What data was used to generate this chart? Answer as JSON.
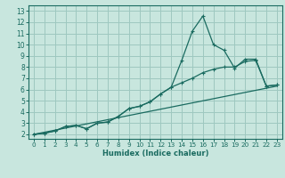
{
  "xlabel": "Humidex (Indice chaleur)",
  "bg_color": "#c8e6de",
  "grid_color": "#9ec8c0",
  "line_color": "#1a6b60",
  "spine_color": "#1a6b60",
  "xlim": [
    -0.5,
    23.5
  ],
  "ylim": [
    1.6,
    13.5
  ],
  "xticks": [
    0,
    1,
    2,
    3,
    4,
    5,
    6,
    7,
    8,
    9,
    10,
    11,
    12,
    13,
    14,
    15,
    16,
    17,
    18,
    19,
    20,
    21,
    22,
    23
  ],
  "yticks": [
    2,
    3,
    4,
    5,
    6,
    7,
    8,
    9,
    10,
    11,
    12,
    13
  ],
  "curve1_x": [
    0,
    1,
    2,
    3,
    4,
    5,
    6,
    7,
    8,
    9,
    10,
    11,
    12,
    13,
    14,
    15,
    16,
    17,
    18,
    19,
    20,
    21,
    22,
    23
  ],
  "curve1_y": [
    2.0,
    2.1,
    2.3,
    2.7,
    2.8,
    2.5,
    3.0,
    3.1,
    3.6,
    4.3,
    4.5,
    4.9,
    5.6,
    6.2,
    8.6,
    11.2,
    12.55,
    10.0,
    9.5,
    7.9,
    8.7,
    8.7,
    6.3,
    6.4
  ],
  "curve2_x": [
    0,
    1,
    2,
    3,
    4,
    5,
    6,
    7,
    8,
    9,
    10,
    11,
    12,
    13,
    14,
    15,
    16,
    17,
    18,
    19,
    20,
    21,
    22,
    23
  ],
  "curve2_y": [
    2.0,
    2.1,
    2.3,
    2.7,
    2.8,
    2.5,
    3.0,
    3.1,
    3.6,
    4.3,
    4.5,
    4.9,
    5.6,
    6.2,
    6.6,
    7.0,
    7.5,
    7.8,
    8.0,
    8.0,
    8.5,
    8.6,
    6.3,
    6.4
  ],
  "curve3_x": [
    0,
    23
  ],
  "curve3_y": [
    2.0,
    6.3
  ]
}
